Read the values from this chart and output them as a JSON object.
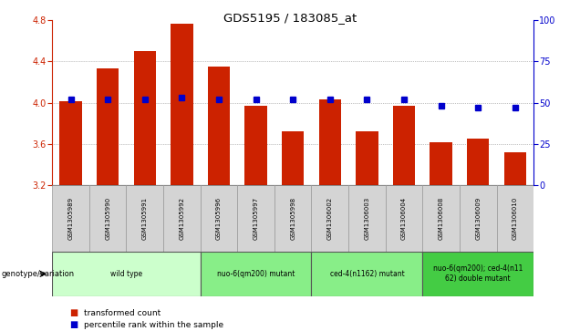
{
  "title": "GDS5195 / 183085_at",
  "samples": [
    "GSM1305989",
    "GSM1305990",
    "GSM1305991",
    "GSM1305992",
    "GSM1305996",
    "GSM1305997",
    "GSM1305998",
    "GSM1306002",
    "GSM1306003",
    "GSM1306004",
    "GSM1306008",
    "GSM1306009",
    "GSM1306010"
  ],
  "bar_values": [
    4.01,
    4.33,
    4.5,
    4.76,
    4.35,
    3.97,
    3.72,
    4.03,
    3.72,
    3.97,
    3.62,
    3.65,
    3.52
  ],
  "percentile_values": [
    52,
    52,
    52,
    53,
    52,
    52,
    52,
    52,
    52,
    52,
    48,
    47,
    47
  ],
  "bar_bottom": 3.2,
  "ymin": 3.2,
  "ymax": 4.8,
  "yticks": [
    3.2,
    3.6,
    4.0,
    4.4,
    4.8
  ],
  "y2min": 0,
  "y2max": 100,
  "y2ticks": [
    0,
    25,
    50,
    75,
    100
  ],
  "bar_color": "#cc2200",
  "dot_color": "#0000cc",
  "groups": [
    {
      "label": "wild type",
      "start": 0,
      "end": 4,
      "color": "#ccffcc"
    },
    {
      "label": "nuo-6(qm200) mutant",
      "start": 4,
      "end": 7,
      "color": "#88ee88"
    },
    {
      "label": "ced-4(n1162) mutant",
      "start": 7,
      "end": 10,
      "color": "#88ee88"
    },
    {
      "label": "nuo-6(qm200); ced-4(n11\n62) double mutant",
      "start": 10,
      "end": 13,
      "color": "#44cc44"
    }
  ],
  "genotype_label": "genotype/variation",
  "legend_bar_label": "transformed count",
  "legend_dot_label": "percentile rank within the sample",
  "plot_bg_color": "#ffffff",
  "spine_color": "#000000",
  "left_spine_color": "#cc2200",
  "right_spine_color": "#0000cc",
  "grid_color": "#888888",
  "sample_box_color": "#d4d4d4",
  "sample_box_edge": "#999999"
}
